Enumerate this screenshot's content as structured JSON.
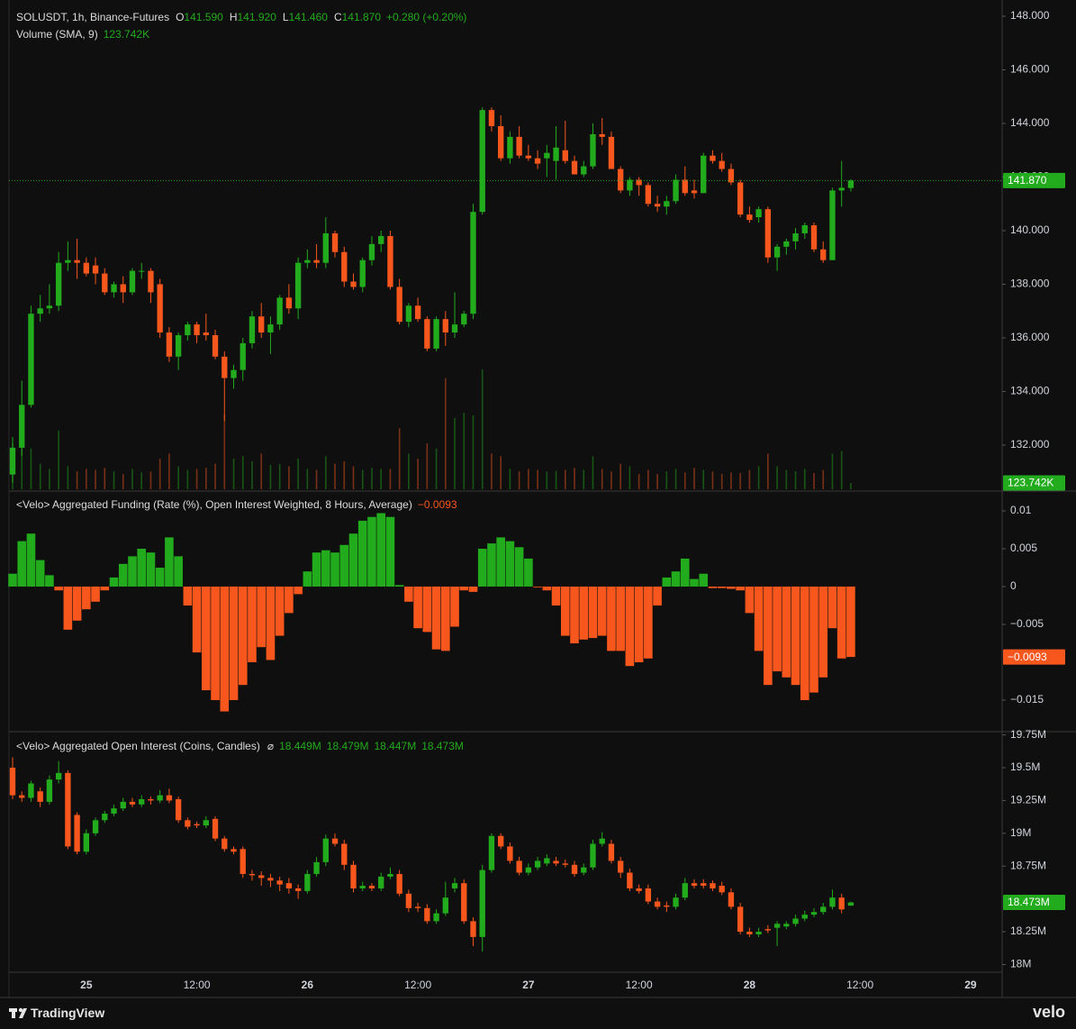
{
  "chart_data": [
    {
      "type": "candlestick",
      "title": "SOLUSDT, 1h, Binance-Futures",
      "legend": [
        {
          "key": "O",
          "value": "141.590"
        },
        {
          "key": "H",
          "value": "141.920"
        },
        {
          "key": "L",
          "value": "141.460"
        },
        {
          "key": "C",
          "value": "141.870"
        }
      ],
      "change_label": "+0.280 (+0.20%)",
      "colors": {
        "up": "#22ab1c",
        "down": "#f7561c"
      },
      "open": [
        130.9,
        131.9,
        133.5,
        136.9,
        137.1,
        137.2,
        138.8,
        138.9,
        138.8,
        138.7,
        138.4,
        137.7,
        138.0,
        137.7,
        138.5,
        138.5,
        138.0,
        136.2,
        135.3,
        136.1,
        136.5,
        136.2,
        136.1,
        135.3,
        134.5,
        134.8,
        135.8,
        136.8,
        136.2,
        136.5,
        137.5,
        137.1,
        138.8,
        138.9,
        138.8,
        139.9,
        139.2,
        138.1,
        137.9,
        138.9,
        139.5,
        139.8,
        137.9,
        136.6,
        137.2,
        136.7,
        135.6,
        136.7,
        136.2,
        136.5,
        136.9,
        140.7,
        144.5,
        143.9,
        142.7,
        143.5,
        142.8,
        142.7,
        142.7,
        142.6,
        143.0,
        142.6,
        142.1,
        142.4,
        143.6,
        143.5,
        142.3,
        141.5,
        141.9,
        141.7,
        141.0,
        140.9,
        141.1,
        141.9,
        141.5,
        141.4,
        142.8,
        142.6,
        142.3,
        141.8,
        140.6,
        140.5,
        140.8,
        139.0,
        139.4,
        139.6,
        139.9,
        140.2,
        139.3,
        138.9,
        141.5,
        141.59
      ],
      "high": [
        132.3,
        134.4,
        137.2,
        137.6,
        138.0,
        139.2,
        139.6,
        139.7,
        139.0,
        139.0,
        138.6,
        138.1,
        138.3,
        138.6,
        138.8,
        138.6,
        138.2,
        136.4,
        136.2,
        136.6,
        136.6,
        136.9,
        136.3,
        135.5,
        135.0,
        136.0,
        137.0,
        137.3,
        136.8,
        137.6,
        138.0,
        139.0,
        139.3,
        139.5,
        140.5,
        140.0,
        139.4,
        138.4,
        139.0,
        139.8,
        140.0,
        140.0,
        138.2,
        137.3,
        137.5,
        136.8,
        136.8,
        137.0,
        137.7,
        137.0,
        141.0,
        144.6,
        144.6,
        144.3,
        143.7,
        143.9,
        143.2,
        143.0,
        143.2,
        143.9,
        144.1,
        142.8,
        142.6,
        144.0,
        144.2,
        143.7,
        142.4,
        142.0,
        142.0,
        141.8,
        141.3,
        141.3,
        142.1,
        142.4,
        141.9,
        142.9,
        143.0,
        142.9,
        142.5,
        141.9,
        140.9,
        140.9,
        140.9,
        139.5,
        139.7,
        140.1,
        140.3,
        140.3,
        139.6,
        141.6,
        142.6,
        141.92
      ],
      "low": [
        130.6,
        131.6,
        133.4,
        136.6,
        136.9,
        137.0,
        138.5,
        138.2,
        138.3,
        138.0,
        137.6,
        137.5,
        137.3,
        137.6,
        138.2,
        137.3,
        136.0,
        135.1,
        134.8,
        135.9,
        135.8,
        135.9,
        135.2,
        132.9,
        134.1,
        134.4,
        135.6,
        136.0,
        135.4,
        136.3,
        136.9,
        136.7,
        138.6,
        138.6,
        138.6,
        139.0,
        137.9,
        137.8,
        137.7,
        138.7,
        139.2,
        137.8,
        136.5,
        136.4,
        136.6,
        135.5,
        135.5,
        135.7,
        136.0,
        136.4,
        136.7,
        140.6,
        143.7,
        142.6,
        142.5,
        142.7,
        142.6,
        142.3,
        142.0,
        141.9,
        142.5,
        142.1,
        142.0,
        142.3,
        143.2,
        142.3,
        141.4,
        141.3,
        141.3,
        140.9,
        140.7,
        140.6,
        141.0,
        141.3,
        141.2,
        141.4,
        142.5,
        142.2,
        141.7,
        140.5,
        140.3,
        140.3,
        138.8,
        138.5,
        139.1,
        139.3,
        139.7,
        139.2,
        138.8,
        138.9,
        140.9,
        141.46
      ],
      "close": [
        131.9,
        133.5,
        136.9,
        137.1,
        137.2,
        138.8,
        138.9,
        138.8,
        138.4,
        138.4,
        137.7,
        138.0,
        137.7,
        138.5,
        138.5,
        137.7,
        136.2,
        135.3,
        136.1,
        136.5,
        136.1,
        136.1,
        135.3,
        134.5,
        134.8,
        135.8,
        136.8,
        136.2,
        136.5,
        137.5,
        137.1,
        138.8,
        138.9,
        138.8,
        139.9,
        139.2,
        138.1,
        137.9,
        138.9,
        139.5,
        139.8,
        137.9,
        136.6,
        137.2,
        136.7,
        135.6,
        136.7,
        136.2,
        136.5,
        136.9,
        140.7,
        144.5,
        143.9,
        142.7,
        143.5,
        142.8,
        142.7,
        142.5,
        142.9,
        143.1,
        142.6,
        142.1,
        142.4,
        143.6,
        143.5,
        142.3,
        141.5,
        141.9,
        141.7,
        141.0,
        140.9,
        141.1,
        141.9,
        141.4,
        141.4,
        142.8,
        142.6,
        142.3,
        141.8,
        140.6,
        140.4,
        140.8,
        139.0,
        139.4,
        139.6,
        139.9,
        140.2,
        139.3,
        138.9,
        141.5,
        141.6,
        141.87
      ],
      "last_label": "141.870",
      "ylim": [
        130.35,
        148.27
      ],
      "yticks": [
        {
          "value": 148,
          "label": "148.000"
        },
        {
          "value": 146,
          "label": "146.000"
        },
        {
          "value": 144,
          "label": "144.000"
        },
        {
          "value": 142,
          "label": "142.000"
        },
        {
          "value": 140,
          "label": "140.000"
        },
        {
          "value": 138,
          "label": "138.000"
        },
        {
          "value": 136,
          "label": "136.000"
        },
        {
          "value": 134,
          "label": "134.000"
        },
        {
          "value": 132,
          "label": "132.000"
        }
      ],
      "volume": {
        "type": "bar",
        "name": "Volume (SMA, 9)",
        "ylim": [
          0,
          9420
        ],
        "value_label": "123.742K",
        "values": [
          900,
          1300,
          800,
          500,
          400,
          1150,
          450,
          350,
          400,
          380,
          420,
          350,
          300,
          400,
          330,
          350,
          600,
          700,
          450,
          380,
          400,
          420,
          500,
          1470,
          600,
          650,
          550,
          700,
          480,
          500,
          450,
          600,
          400,
          380,
          650,
          500,
          550,
          450,
          380,
          420,
          400,
          400,
          1200,
          700,
          600,
          900,
          800,
          2180,
          1400,
          1500,
          1450,
          2350,
          700,
          650,
          400,
          350,
          400,
          380,
          350,
          360,
          380,
          420,
          380,
          650,
          400,
          350,
          500,
          450,
          300,
          380,
          300,
          350,
          400,
          330,
          420,
          380,
          350,
          300,
          330,
          320,
          380,
          450,
          700,
          450,
          380,
          350,
          400,
          320,
          380,
          700,
          750,
          123.742
        ]
      }
    },
    {
      "type": "histogram",
      "title": "<Velo> Aggregated Funding (Rate (%), Open Interest Weighted, 8 Hours, Average)",
      "value_label": "−0.0093",
      "colors": {
        "up": "#22ab1c",
        "down": "#f7561c"
      },
      "values": [
        0.0017,
        0.006,
        0.007,
        0.0035,
        0.0015,
        -0.0005,
        -0.0057,
        -0.0045,
        -0.003,
        -0.002,
        -0.0005,
        0.0012,
        0.003,
        0.004,
        0.005,
        0.0045,
        0.0025,
        0.0065,
        0.004,
        -0.0025,
        -0.0087,
        -0.0137,
        -0.015,
        -0.0165,
        -0.015,
        -0.013,
        -0.01,
        -0.008,
        -0.0097,
        -0.0065,
        -0.0035,
        -0.001,
        0.002,
        0.0045,
        0.0048,
        0.0045,
        0.0055,
        0.007,
        0.0087,
        0.0092,
        0.0097,
        0.0092,
        0.0002,
        -0.002,
        -0.0055,
        -0.006,
        -0.0083,
        -0.0085,
        -0.0053,
        -0.0005,
        -0.0007,
        0.005,
        0.0057,
        0.0065,
        0.006,
        0.0052,
        0.0037,
        -0.0001,
        -0.0005,
        -0.0025,
        -0.0065,
        -0.0075,
        -0.007,
        -0.0068,
        -0.0065,
        -0.0085,
        -0.0085,
        -0.0105,
        -0.01,
        -0.0095,
        -0.0025,
        0.0012,
        0.002,
        0.0037,
        0.001,
        0.0017,
        -0.0002,
        -0.0002,
        -0.0003,
        -0.0005,
        -0.0035,
        -0.0085,
        -0.013,
        -0.0112,
        -0.012,
        -0.013,
        -0.015,
        -0.014,
        -0.012,
        -0.0055,
        -0.0095,
        -0.0093
      ],
      "ylim": [
        -0.01905,
        0.01238
      ],
      "yticks": [
        0.01,
        0.005,
        0,
        {
          "value": -0.005,
          "label": "−0.005"
        },
        {
          "value": -0.015,
          "label": "−0.015"
        }
      ]
    },
    {
      "type": "candlestick",
      "title": "<Velo> Aggregated Open Interest (Coins, Candles)",
      "symbol": "⌀",
      "ohlc_labels": [
        "18.449M",
        "18.479M",
        "18.447M",
        "18.473M"
      ],
      "colors": {
        "up": "#22ab1c",
        "down": "#f7561c"
      },
      "open": [
        19.5,
        19.29,
        19.27,
        19.32,
        19.24,
        19.41,
        19.46,
        19.14,
        18.86,
        19.0,
        19.1,
        19.15,
        19.19,
        19.24,
        19.22,
        19.26,
        19.25,
        19.29,
        19.26,
        19.1,
        19.07,
        19.06,
        19.11,
        18.96,
        18.88,
        18.88,
        18.69,
        18.68,
        18.66,
        18.64,
        18.62,
        18.58,
        18.56,
        18.69,
        18.78,
        18.96,
        18.92,
        18.76,
        18.58,
        18.6,
        18.58,
        18.67,
        18.69,
        18.54,
        18.44,
        18.43,
        18.33,
        18.39,
        18.58,
        18.62,
        18.33,
        18.21,
        18.72,
        18.98,
        18.9,
        18.79,
        18.7,
        18.74,
        18.77,
        18.79,
        18.77,
        18.76,
        18.7,
        18.74,
        18.92,
        18.92,
        18.79,
        18.7,
        18.58,
        18.58,
        18.48,
        18.45,
        18.44,
        18.51,
        18.62,
        18.62,
        18.62,
        18.6,
        18.55,
        18.44,
        18.25,
        18.23,
        18.27,
        18.28,
        18.29,
        18.31,
        18.35,
        18.38,
        18.4,
        18.44,
        18.51,
        18.449
      ],
      "high": [
        19.58,
        19.32,
        19.4,
        19.35,
        19.44,
        19.55,
        19.48,
        19.16,
        19.03,
        19.12,
        19.17,
        19.22,
        19.27,
        19.27,
        19.29,
        19.28,
        19.33,
        19.34,
        19.28,
        19.12,
        19.09,
        19.13,
        19.13,
        18.98,
        18.9,
        18.9,
        18.72,
        18.71,
        18.69,
        18.67,
        18.66,
        18.61,
        18.72,
        18.82,
        18.99,
        19.0,
        18.95,
        18.79,
        18.63,
        18.62,
        18.7,
        18.74,
        18.72,
        18.57,
        18.47,
        18.46,
        18.42,
        18.63,
        18.66,
        18.65,
        18.36,
        18.76,
        19.0,
        19.0,
        18.93,
        18.82,
        18.77,
        18.82,
        18.84,
        18.82,
        18.8,
        18.79,
        18.77,
        18.95,
        19.01,
        18.95,
        18.82,
        18.73,
        18.61,
        18.61,
        18.51,
        18.48,
        18.54,
        18.66,
        18.65,
        18.65,
        18.64,
        18.63,
        18.58,
        18.47,
        18.28,
        18.28,
        18.3,
        18.33,
        18.33,
        18.38,
        18.41,
        18.43,
        18.47,
        18.57,
        18.54,
        18.479
      ],
      "low": [
        19.26,
        19.24,
        19.24,
        19.2,
        19.22,
        19.38,
        18.88,
        18.84,
        18.84,
        18.98,
        19.08,
        19.13,
        19.17,
        19.2,
        19.2,
        19.22,
        19.23,
        19.23,
        19.08,
        19.03,
        19.04,
        19.04,
        18.94,
        18.86,
        18.84,
        18.66,
        18.64,
        18.6,
        18.59,
        18.56,
        18.54,
        18.5,
        18.54,
        18.67,
        18.75,
        18.9,
        18.72,
        18.55,
        18.56,
        18.56,
        18.56,
        18.65,
        18.52,
        18.4,
        18.4,
        18.31,
        18.31,
        18.37,
        18.55,
        18.31,
        18.14,
        18.1,
        18.7,
        18.88,
        18.77,
        18.68,
        18.68,
        18.72,
        18.75,
        18.75,
        18.74,
        18.67,
        18.68,
        18.72,
        18.9,
        18.77,
        18.66,
        18.56,
        18.54,
        18.46,
        18.42,
        18.4,
        18.42,
        18.49,
        18.58,
        18.58,
        18.56,
        18.53,
        18.42,
        18.23,
        18.21,
        18.21,
        18.24,
        18.14,
        18.27,
        18.29,
        18.33,
        18.36,
        18.38,
        18.42,
        18.39,
        18.447
      ],
      "close": [
        19.29,
        19.27,
        19.38,
        19.24,
        19.41,
        19.46,
        18.9,
        18.86,
        19.0,
        19.1,
        19.15,
        19.19,
        19.24,
        19.22,
        19.26,
        19.25,
        19.29,
        19.25,
        19.1,
        19.05,
        19.06,
        19.1,
        18.96,
        18.88,
        18.86,
        18.69,
        18.68,
        18.66,
        18.64,
        18.61,
        18.58,
        18.56,
        18.69,
        18.78,
        18.96,
        18.92,
        18.76,
        18.58,
        18.6,
        18.58,
        18.67,
        18.69,
        18.54,
        18.43,
        18.43,
        18.33,
        18.39,
        18.51,
        18.62,
        18.33,
        18.21,
        18.72,
        18.98,
        18.9,
        18.79,
        18.7,
        18.74,
        18.79,
        18.81,
        18.77,
        18.76,
        18.69,
        18.74,
        18.92,
        18.96,
        18.79,
        18.7,
        18.58,
        18.56,
        18.48,
        18.44,
        18.44,
        18.51,
        18.62,
        18.6,
        18.6,
        18.58,
        18.55,
        18.44,
        18.25,
        18.23,
        18.25,
        18.26,
        18.31,
        18.31,
        18.35,
        18.38,
        18.4,
        18.44,
        18.51,
        18.42,
        18.473
      ],
      "last_label": "18.473M",
      "ylim": [
        17.948,
        19.768
      ],
      "yticks": [
        {
          "value": 19.75,
          "label": "19.75M"
        },
        {
          "value": 19.5,
          "label": "19.5M"
        },
        {
          "value": 19.25,
          "label": "19.25M"
        },
        {
          "value": 19,
          "label": "19M"
        },
        {
          "value": 18.75,
          "label": "18.75M"
        },
        {
          "value": 18.25,
          "label": "18.25M"
        },
        {
          "value": 18,
          "label": "18M"
        }
      ],
      "xlim": [
        -0.39,
        107.43
      ],
      "xticks": [
        {
          "value": 8,
          "label": "25"
        },
        {
          "value": 20,
          "label": "12:00"
        },
        {
          "value": 32,
          "label": "26"
        },
        {
          "value": 44,
          "label": "12:00"
        },
        {
          "value": 56,
          "label": "27"
        },
        {
          "value": 68,
          "label": "12:00"
        },
        {
          "value": 80,
          "label": "28"
        },
        {
          "value": 92,
          "label": "12:00"
        },
        {
          "value": 104,
          "label": "29"
        }
      ]
    }
  ],
  "branding": {
    "left": "TradingView",
    "right": "velo"
  }
}
